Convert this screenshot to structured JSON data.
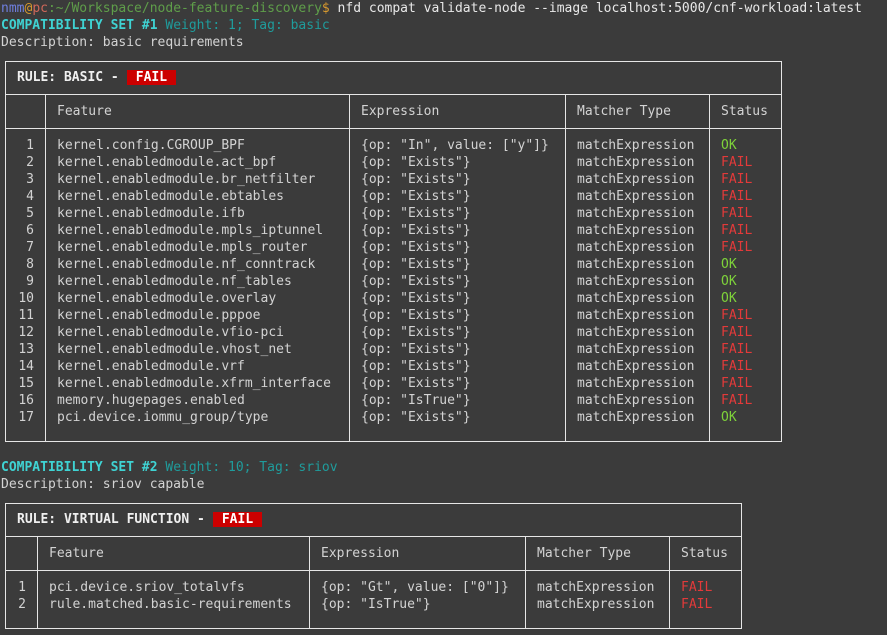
{
  "terminal": {
    "prompt": {
      "user": "nmm",
      "at": "@",
      "host": "pc",
      "path": ":~/Workspace/node-feature-discovery",
      "dollar": "$"
    },
    "command": " nfd compat validate-node --image localhost:5000/cnf-workload:latest"
  },
  "colors": {
    "ok": "#7ed23a",
    "fail": "#e23a3a",
    "badge": "#cc0000",
    "background": "#3b3b3b"
  },
  "sets": [
    {
      "title": "COMPATIBILITY SET #1",
      "meta": " Weight: 1; Tag: basic",
      "description": "Description: basic requirements",
      "rule_label": "RULE: BASIC -",
      "rule_status": "FAIL",
      "columns": [
        "Feature",
        "Expression",
        "Matcher Type",
        "Status"
      ],
      "rows": [
        {
          "n": "1",
          "feature": "kernel.config.CGROUP_BPF",
          "expression": "{op: \"In\", value: [\"y\"]}",
          "matcher": "matchExpression",
          "status": "OK"
        },
        {
          "n": "2",
          "feature": "kernel.enabledmodule.act_bpf",
          "expression": "{op: \"Exists\"}",
          "matcher": "matchExpression",
          "status": "FAIL"
        },
        {
          "n": "3",
          "feature": "kernel.enabledmodule.br_netfilter",
          "expression": "{op: \"Exists\"}",
          "matcher": "matchExpression",
          "status": "FAIL"
        },
        {
          "n": "4",
          "feature": "kernel.enabledmodule.ebtables",
          "expression": "{op: \"Exists\"}",
          "matcher": "matchExpression",
          "status": "FAIL"
        },
        {
          "n": "5",
          "feature": "kernel.enabledmodule.ifb",
          "expression": "{op: \"Exists\"}",
          "matcher": "matchExpression",
          "status": "FAIL"
        },
        {
          "n": "6",
          "feature": "kernel.enabledmodule.mpls_iptunnel",
          "expression": "{op: \"Exists\"}",
          "matcher": "matchExpression",
          "status": "FAIL"
        },
        {
          "n": "7",
          "feature": "kernel.enabledmodule.mpls_router",
          "expression": "{op: \"Exists\"}",
          "matcher": "matchExpression",
          "status": "FAIL"
        },
        {
          "n": "8",
          "feature": "kernel.enabledmodule.nf_conntrack",
          "expression": "{op: \"Exists\"}",
          "matcher": "matchExpression",
          "status": "OK"
        },
        {
          "n": "9",
          "feature": "kernel.enabledmodule.nf_tables",
          "expression": "{op: \"Exists\"}",
          "matcher": "matchExpression",
          "status": "OK"
        },
        {
          "n": "10",
          "feature": "kernel.enabledmodule.overlay",
          "expression": "{op: \"Exists\"}",
          "matcher": "matchExpression",
          "status": "OK"
        },
        {
          "n": "11",
          "feature": "kernel.enabledmodule.pppoe",
          "expression": "{op: \"Exists\"}",
          "matcher": "matchExpression",
          "status": "FAIL"
        },
        {
          "n": "12",
          "feature": "kernel.enabledmodule.vfio-pci",
          "expression": "{op: \"Exists\"}",
          "matcher": "matchExpression",
          "status": "FAIL"
        },
        {
          "n": "13",
          "feature": "kernel.enabledmodule.vhost_net",
          "expression": "{op: \"Exists\"}",
          "matcher": "matchExpression",
          "status": "FAIL"
        },
        {
          "n": "14",
          "feature": "kernel.enabledmodule.vrf",
          "expression": "{op: \"Exists\"}",
          "matcher": "matchExpression",
          "status": "FAIL"
        },
        {
          "n": "15",
          "feature": "kernel.enabledmodule.xfrm_interface",
          "expression": "{op: \"Exists\"}",
          "matcher": "matchExpression",
          "status": "FAIL"
        },
        {
          "n": "16",
          "feature": "memory.hugepages.enabled",
          "expression": "{op: \"IsTrue\"}",
          "matcher": "matchExpression",
          "status": "FAIL"
        },
        {
          "n": "17",
          "feature": "pci.device.iommu_group/type",
          "expression": "{op: \"Exists\"}",
          "matcher": "matchExpression",
          "status": "OK"
        }
      ]
    },
    {
      "title": "COMPATIBILITY SET #2",
      "meta": " Weight: 10; Tag: sriov",
      "description": "Description: sriov capable",
      "rule_label": "RULE: VIRTUAL FUNCTION -",
      "rule_status": "FAIL",
      "columns": [
        "Feature",
        "Expression",
        "Matcher Type",
        "Status"
      ],
      "rows": [
        {
          "n": "1",
          "feature": "pci.device.sriov_totalvfs",
          "expression": "{op: \"Gt\", value: [\"0\"]}",
          "matcher": "matchExpression",
          "status": "FAIL"
        },
        {
          "n": "2",
          "feature": "rule.matched.basic-requirements",
          "expression": "{op: \"IsTrue\"}",
          "matcher": "matchExpression",
          "status": "FAIL"
        }
      ]
    }
  ]
}
